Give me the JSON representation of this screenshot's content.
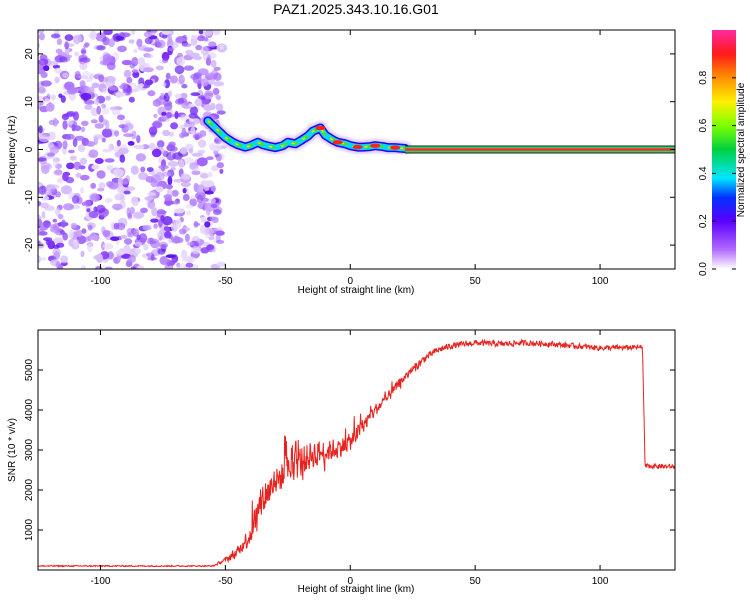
{
  "title": "PAZ1.2025.343.10.16.G01",
  "chart_data": [
    {
      "type": "heatmap",
      "title": "PAZ1.2025.343.10.16.G01",
      "xlabel": "Height of straight line (km)",
      "ylabel": "Frequency (Hz)",
      "xlim": [
        -125,
        130
      ],
      "ylim": [
        -25,
        25
      ],
      "xticks": [
        -100,
        -50,
        0,
        50,
        100
      ],
      "xtick_labels": [
        "-100",
        "-50",
        "0",
        "50",
        "100"
      ],
      "yticks": [
        -20,
        -10,
        0,
        10,
        20
      ],
      "ytick_labels": [
        "-20",
        "-10",
        "0",
        "10",
        "20"
      ],
      "colorbar": {
        "label": "Normalized spectral amplitude",
        "range": [
          0,
          1
        ],
        "ticks": [
          0.0,
          0.2,
          0.4,
          0.6,
          0.8
        ],
        "tick_labels": [
          "0.0",
          "0.2",
          "0.4",
          "0.6",
          "0.8"
        ],
        "colormap": "rainbow-white"
      },
      "noise_region_x": [
        -125,
        -53
      ],
      "signal_trace": {
        "x": [
          -57,
          -55,
          -52,
          -50,
          -47,
          -45,
          -42,
          -40,
          -37,
          -35,
          -32,
          -30,
          -27,
          -25,
          -22,
          -20,
          -17,
          -15,
          -12,
          -10,
          -7,
          -5,
          -2,
          0,
          3,
          5,
          8,
          10,
          13,
          15,
          18,
          20,
          22
        ],
        "y": [
          6,
          5,
          3.5,
          2.5,
          1.5,
          1,
          0.5,
          0.8,
          1.5,
          1,
          0.6,
          0.4,
          0.8,
          1.5,
          1.2,
          1.8,
          2.8,
          3.8,
          4.5,
          3,
          2,
          1.5,
          1.2,
          0.8,
          0.5,
          0.5,
          0.6,
          0.8,
          0.6,
          0.4,
          0.4,
          0.3,
          0.2
        ]
      },
      "flat_line": {
        "x": [
          22,
          130
        ],
        "y": 0
      }
    },
    {
      "type": "line",
      "xlabel": "Height of straight line (km)",
      "ylabel": "SNR (10 * v/v)",
      "xlim": [
        -125,
        130
      ],
      "ylim": [
        0,
        6000
      ],
      "xticks": [
        -100,
        -50,
        0,
        50,
        100
      ],
      "xtick_labels": [
        "-100",
        "-50",
        "0",
        "50",
        "100"
      ],
      "yticks": [
        1000,
        2000,
        3000,
        4000,
        5000
      ],
      "ytick_labels": [
        "1000",
        "2000",
        "3000",
        "4000",
        "5000"
      ],
      "color": "#e8221e",
      "envelope": {
        "x": [
          -125,
          -55,
          -50,
          -45,
          -40,
          -35,
          -30,
          -25,
          -20,
          -15,
          -10,
          -5,
          0,
          5,
          10,
          15,
          20,
          25,
          30,
          35,
          40,
          50,
          60,
          70,
          80,
          90,
          100,
          110,
          117,
          118,
          120,
          130
        ],
        "mean": [
          100,
          100,
          250,
          450,
          900,
          1800,
          2200,
          2500,
          2700,
          2900,
          2950,
          3050,
          3200,
          3600,
          4000,
          4300,
          4700,
          5000,
          5300,
          5500,
          5600,
          5680,
          5650,
          5680,
          5650,
          5600,
          5550,
          5560,
          5570,
          2600,
          2600,
          2580
        ],
        "noise": [
          30,
          30,
          120,
          300,
          1000,
          1400,
          1100,
          1200,
          1300,
          1100,
          900,
          800,
          700,
          600,
          500,
          450,
          350,
          250,
          180,
          160,
          150,
          140,
          140,
          140,
          130,
          130,
          130,
          120,
          120,
          60,
          60,
          60
        ]
      },
      "step_drop_x": 117.5
    }
  ]
}
